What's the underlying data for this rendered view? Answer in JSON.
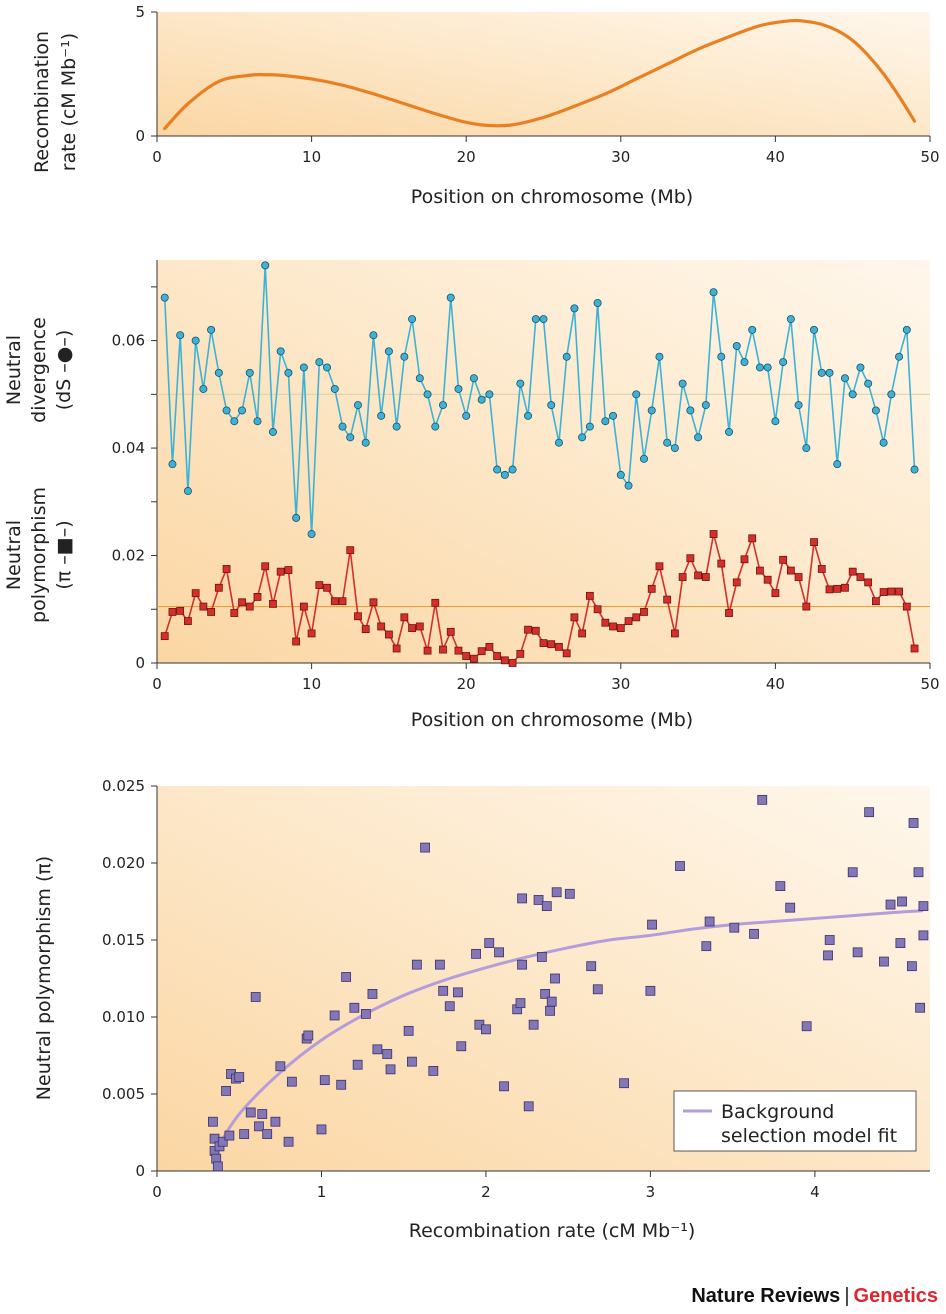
{
  "colors": {
    "recombination_line": "#ea7f22",
    "divergence": "#3cb3d6",
    "polymorphism": "#d62f2a",
    "scatter": "#8477b8",
    "fit": "#b39ddb",
    "background": "#fde6c4"
  },
  "footer": {
    "journal": "Nature Reviews",
    "separator": "|",
    "section": "Genetics"
  },
  "chart_data": [
    {
      "id": "recombination",
      "type": "line",
      "title": "",
      "xlabel": "Position on chromosome (Mb)",
      "ylabel_line1": "Recombination",
      "ylabel_line2": "rate (cM Mb⁻¹)",
      "xlim": [
        0,
        50
      ],
      "ylim": [
        0,
        5
      ],
      "xticks": [
        "0",
        "10",
        "20",
        "30",
        "40",
        "50"
      ],
      "yticks": [
        "0",
        "5"
      ],
      "x": [
        0.5,
        2,
        4,
        6,
        7,
        8,
        10,
        12,
        14,
        16,
        18,
        20,
        21.5,
        23,
        25,
        27,
        29,
        31,
        33,
        35,
        37,
        39,
        41,
        42,
        43,
        44,
        45,
        46,
        47,
        48,
        49
      ],
      "y": [
        0.3,
        1.3,
        2.2,
        2.45,
        2.47,
        2.45,
        2.3,
        2.05,
        1.7,
        1.3,
        0.9,
        0.55,
        0.42,
        0.45,
        0.75,
        1.2,
        1.7,
        2.3,
        2.9,
        3.5,
        4.0,
        4.45,
        4.65,
        4.62,
        4.5,
        4.25,
        3.85,
        3.25,
        2.5,
        1.6,
        0.6
      ]
    },
    {
      "id": "divergence_polymorphism",
      "type": "line",
      "title": "",
      "xlabel": "Position on chromosome (Mb)",
      "ylabel_top_line1": "Neutral",
      "ylabel_top_line2": "divergence",
      "ylabel_top_line3": "(dS –●–)",
      "ylabel_bottom_line1": "Neutral",
      "ylabel_bottom_line2": "polymorphism",
      "ylabel_bottom_line3": "(π –■–)",
      "xlim": [
        0,
        50
      ],
      "ylim": [
        0,
        0.075
      ],
      "xticks": [
        "0",
        "10",
        "20",
        "30",
        "40",
        "50"
      ],
      "yticks": [
        "0",
        "0.02",
        "0.04",
        "0.06"
      ],
      "mean_lines": [
        0.05,
        0.0105
      ],
      "x": [
        0.5,
        1,
        1.5,
        2,
        2.5,
        3,
        3.5,
        4,
        4.5,
        5,
        5.5,
        6,
        6.5,
        7,
        7.5,
        8,
        8.5,
        9,
        9.5,
        10,
        10.5,
        11,
        11.5,
        12,
        12.5,
        13,
        13.5,
        14,
        14.5,
        15,
        15.5,
        16,
        16.5,
        17,
        17.5,
        18,
        18.5,
        19,
        19.5,
        20,
        20.5,
        21,
        21.5,
        22,
        22.5,
        23,
        23.5,
        24,
        24.5,
        25,
        25.5,
        26,
        26.5,
        27,
        27.5,
        28,
        28.5,
        29,
        29.5,
        30,
        30.5,
        31,
        31.5,
        32,
        32.5,
        33,
        33.5,
        34,
        34.5,
        35,
        35.5,
        36,
        36.5,
        37,
        37.5,
        38,
        38.5,
        39,
        39.5,
        40,
        40.5,
        41,
        41.5,
        42,
        42.5,
        43,
        43.5,
        44,
        44.5,
        45,
        45.5,
        46,
        46.5,
        47,
        47.5,
        48,
        48.5,
        49
      ],
      "series": [
        {
          "name": "dS",
          "values": [
            0.068,
            0.037,
            0.061,
            0.032,
            0.06,
            0.051,
            0.062,
            0.054,
            0.047,
            0.045,
            0.047,
            0.054,
            0.045,
            0.074,
            0.043,
            0.058,
            0.054,
            0.027,
            0.055,
            0.024,
            0.056,
            0.055,
            0.051,
            0.044,
            0.042,
            0.048,
            0.041,
            0.061,
            0.046,
            0.058,
            0.044,
            0.057,
            0.064,
            0.053,
            0.05,
            0.044,
            0.048,
            0.068,
            0.051,
            0.046,
            0.053,
            0.049,
            0.05,
            0.036,
            0.035,
            0.036,
            0.052,
            0.046,
            0.064,
            0.064,
            0.048,
            0.041,
            0.057,
            0.066,
            0.042,
            0.044,
            0.067,
            0.045,
            0.046,
            0.035,
            0.033,
            0.05,
            0.038,
            0.047,
            0.057,
            0.041,
            0.04,
            0.052,
            0.047,
            0.042,
            0.048,
            0.069,
            0.057,
            0.043,
            0.059,
            0.056,
            0.062,
            0.055,
            0.055,
            0.045,
            0.056,
            0.064,
            0.048,
            0.04,
            0.062,
            0.054,
            0.054,
            0.037,
            0.053,
            0.05,
            0.055,
            0.052,
            0.047,
            0.041,
            0.05,
            0.057,
            0.062,
            0.036
          ]
        },
        {
          "name": "π",
          "values": [
            0.005,
            0.0095,
            0.0097,
            0.0078,
            0.013,
            0.0105,
            0.0095,
            0.014,
            0.0175,
            0.0093,
            0.0113,
            0.0105,
            0.0123,
            0.018,
            0.011,
            0.017,
            0.0173,
            0.004,
            0.0105,
            0.0055,
            0.0145,
            0.014,
            0.0115,
            0.0115,
            0.021,
            0.0087,
            0.0063,
            0.0113,
            0.0068,
            0.0053,
            0.0027,
            0.0085,
            0.0065,
            0.0068,
            0.0023,
            0.0112,
            0.0025,
            0.0058,
            0.0023,
            0.0013,
            0.0008,
            0.0022,
            0.003,
            0.0013,
            0.0005,
            0.0,
            0.0017,
            0.0062,
            0.006,
            0.0037,
            0.0035,
            0.003,
            0.0018,
            0.0085,
            0.0055,
            0.0125,
            0.01,
            0.0075,
            0.0068,
            0.0065,
            0.0078,
            0.0085,
            0.0095,
            0.0138,
            0.018,
            0.0118,
            0.0055,
            0.016,
            0.0195,
            0.0163,
            0.016,
            0.024,
            0.0185,
            0.0093,
            0.015,
            0.0193,
            0.0232,
            0.0172,
            0.0155,
            0.013,
            0.0192,
            0.0172,
            0.016,
            0.0105,
            0.0225,
            0.0175,
            0.0137,
            0.0138,
            0.014,
            0.017,
            0.016,
            0.015,
            0.0115,
            0.0132,
            0.0133,
            0.0133,
            0.0105,
            0.0027
          ]
        }
      ]
    },
    {
      "id": "polymorphism_vs_recombination",
      "type": "scatter",
      "title": "",
      "xlabel": "Recombination rate (cM Mb⁻¹)",
      "ylabel": "Neutral polymorphism (π)",
      "xlim": [
        0,
        4.7
      ],
      "ylim": [
        0,
        0.025
      ],
      "xticks": [
        "0",
        "1",
        "2",
        "3",
        "4"
      ],
      "yticks": [
        "0",
        "0.005",
        "0.010",
        "0.015",
        "0.020",
        "0.025"
      ],
      "legend": {
        "label_line1": "Background",
        "label_line2": "selection model fit",
        "position": "bottom-right"
      },
      "fit": {
        "name": "Background selection model fit",
        "x": [
          0.35,
          0.5,
          0.75,
          1.0,
          1.25,
          1.5,
          1.75,
          2.0,
          2.25,
          2.5,
          2.75,
          3.0,
          3.25,
          3.5,
          3.75,
          4.0,
          4.25,
          4.5,
          4.65
        ],
        "y": [
          0.0012,
          0.0037,
          0.0064,
          0.0085,
          0.0101,
          0.0114,
          0.0124,
          0.0132,
          0.0139,
          0.0145,
          0.015,
          0.0153,
          0.0157,
          0.016,
          0.0162,
          0.0164,
          0.0166,
          0.0168,
          0.0169
        ]
      },
      "points": [
        [
          0.34,
          0.0032
        ],
        [
          0.35,
          0.0021
        ],
        [
          0.35,
          0.0013
        ],
        [
          0.36,
          0.0008
        ],
        [
          0.37,
          0.0003
        ],
        [
          0.38,
          0.0016
        ],
        [
          0.4,
          0.0019
        ],
        [
          0.42,
          0.0052
        ],
        [
          0.44,
          0.0023
        ],
        [
          0.45,
          0.0063
        ],
        [
          0.48,
          0.006
        ],
        [
          0.5,
          0.0061
        ],
        [
          0.53,
          0.0024
        ],
        [
          0.57,
          0.0038
        ],
        [
          0.6,
          0.0113
        ],
        [
          0.62,
          0.0029
        ],
        [
          0.64,
          0.0037
        ],
        [
          0.67,
          0.0024
        ],
        [
          0.72,
          0.0032
        ],
        [
          0.75,
          0.0068
        ],
        [
          0.8,
          0.0019
        ],
        [
          0.82,
          0.0058
        ],
        [
          0.91,
          0.0086
        ],
        [
          0.92,
          0.0088
        ],
        [
          1.0,
          0.0027
        ],
        [
          1.02,
          0.0059
        ],
        [
          1.08,
          0.0101
        ],
        [
          1.12,
          0.0056
        ],
        [
          1.15,
          0.0126
        ],
        [
          1.2,
          0.0106
        ],
        [
          1.22,
          0.0069
        ],
        [
          1.27,
          0.0102
        ],
        [
          1.31,
          0.0115
        ],
        [
          1.34,
          0.0079
        ],
        [
          1.4,
          0.0076
        ],
        [
          1.42,
          0.0066
        ],
        [
          1.53,
          0.0091
        ],
        [
          1.55,
          0.0071
        ],
        [
          1.58,
          0.0134
        ],
        [
          1.63,
          0.021
        ],
        [
          1.68,
          0.0065
        ],
        [
          1.72,
          0.0134
        ],
        [
          1.74,
          0.0117
        ],
        [
          1.78,
          0.0107
        ],
        [
          1.83,
          0.0116
        ],
        [
          1.85,
          0.0081
        ],
        [
          1.94,
          0.0141
        ],
        [
          1.96,
          0.0095
        ],
        [
          2.0,
          0.0092
        ],
        [
          2.02,
          0.0148
        ],
        [
          2.08,
          0.0142
        ],
        [
          2.11,
          0.0055
        ],
        [
          2.19,
          0.0105
        ],
        [
          2.21,
          0.0109
        ],
        [
          2.22,
          0.0134
        ],
        [
          2.22,
          0.0177
        ],
        [
          2.26,
          0.0042
        ],
        [
          2.29,
          0.0095
        ],
        [
          2.32,
          0.0176
        ],
        [
          2.34,
          0.0139
        ],
        [
          2.36,
          0.0115
        ],
        [
          2.37,
          0.0172
        ],
        [
          2.39,
          0.0104
        ],
        [
          2.4,
          0.011
        ],
        [
          2.42,
          0.0125
        ],
        [
          2.43,
          0.0181
        ],
        [
          2.51,
          0.018
        ],
        [
          2.64,
          0.0133
        ],
        [
          2.68,
          0.0118
        ],
        [
          2.84,
          0.0057
        ],
        [
          3.0,
          0.0117
        ],
        [
          3.01,
          0.016
        ],
        [
          3.18,
          0.0198
        ],
        [
          3.34,
          0.0146
        ],
        [
          3.36,
          0.0162
        ],
        [
          3.51,
          0.0158
        ],
        [
          3.63,
          0.0154
        ],
        [
          3.68,
          0.0241
        ],
        [
          3.79,
          0.0185
        ],
        [
          3.85,
          0.0171
        ],
        [
          3.95,
          0.0094
        ],
        [
          4.08,
          0.014
        ],
        [
          4.09,
          0.015
        ],
        [
          4.23,
          0.0194
        ],
        [
          4.26,
          0.0142
        ],
        [
          4.33,
          0.0233
        ],
        [
          4.42,
          0.0136
        ],
        [
          4.46,
          0.0173
        ],
        [
          4.52,
          0.0148
        ],
        [
          4.53,
          0.0175
        ],
        [
          4.59,
          0.0133
        ],
        [
          4.6,
          0.0226
        ],
        [
          4.63,
          0.0194
        ],
        [
          4.64,
          0.0106
        ],
        [
          4.66,
          0.0153
        ],
        [
          4.66,
          0.0172
        ]
      ]
    }
  ]
}
